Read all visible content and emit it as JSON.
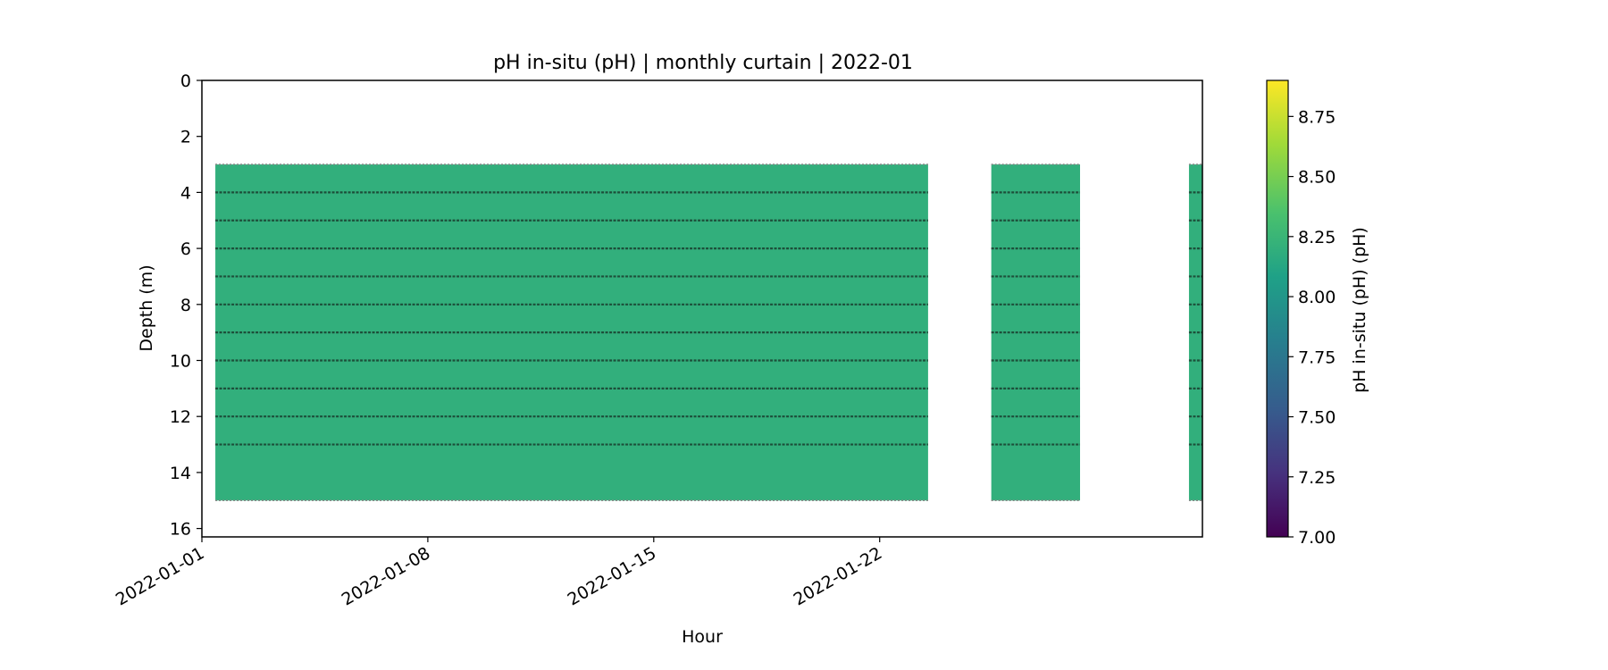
{
  "chart_data": {
    "type": "heatmap",
    "title": "pH in-situ (pH) | monthly curtain | 2022-01",
    "xlabel": "Hour",
    "ylabel": "Depth (m)",
    "x_range": [
      "2022-01-01",
      "2022-02-01"
    ],
    "x_ticks": [
      "2022-01-01",
      "2022-01-08",
      "2022-01-15",
      "2022-01-22"
    ],
    "y_range": [
      0,
      16.3
    ],
    "y_inverted": true,
    "y_ticks": [
      0,
      2,
      4,
      6,
      8,
      10,
      12,
      14,
      16
    ],
    "colormap": "viridis",
    "colorbar": {
      "label": "pH in-situ (pH) (pH)",
      "range": [
        7.0,
        8.9
      ],
      "ticks": [
        "7.00",
        "7.25",
        "7.50",
        "7.75",
        "8.00",
        "8.25",
        "8.50",
        "8.75"
      ]
    },
    "segments": [
      {
        "start": "2022-01-01 10:00",
        "end": "2022-01-23 12:00",
        "top_depth": 3.0,
        "bottom_depth": 15.0,
        "value": 8.2
      },
      {
        "start": "2022-01-25 11:00",
        "end": "2022-01-28 05:00",
        "top_depth": 3.0,
        "bottom_depth": 15.0,
        "value": 8.2
      },
      {
        "start": "2022-01-31 14:00",
        "end": "2022-02-01 00:00",
        "top_depth": 3.0,
        "bottom_depth": 15.0,
        "value": 8.2
      }
    ],
    "sensor_depths": [
      4,
      5,
      6,
      7,
      8,
      9,
      10,
      11,
      12,
      13
    ]
  }
}
